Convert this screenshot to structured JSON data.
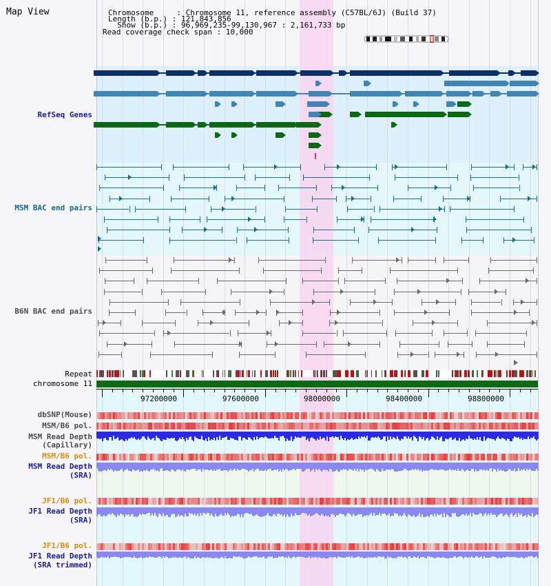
{
  "page": {
    "title": "Map View"
  },
  "info": {
    "chromosome_line": "Chromosome     : Chromosome 11, reference assembly (C57BL/6J) (Build 37)",
    "length_line": "Length (b.p.) : 121,843,856",
    "show_line": "  Show (b.p.) : 96,969,235-99,130,967 : 2,161,733 bp",
    "coverage_line": "Read coverage check span : 10,000"
  },
  "tracks": {
    "refseq_label": "RefSeq Genes",
    "msm_bac_label": "MSM BAC end pairs",
    "b6n_bac_label": "B6N BAC end pairs",
    "repeat_label": "Repeat",
    "chromosome_label": "chromosome 11",
    "dbsnp_label": "dbSNP(Mouse)",
    "msm_b6_pol_label_1": "MSM/B6 pol.",
    "msm_read_depth_cap_label_1": "MSM Read Depth",
    "msm_read_depth_cap_label_2": "(Capillary)",
    "msm_b6_pol_label_2": "MSM/B6 pol.",
    "msm_read_depth_sra_label_1": "MSM Read Depth",
    "msm_read_depth_sra_label_2": "(SRA)",
    "jf1_b6_pol_label_1": "JF1/B6 pol.",
    "jf1_read_depth_sra_label_1": "JF1 Read Depth",
    "jf1_read_depth_sra_label_2": "(SRA)",
    "jf1_b6_pol_label_2": "JF1/B6 pol.",
    "jf1_read_depth_trim_label_1": "JF1 Read Depth",
    "jf1_read_depth_trim_label_2": "(SRA trimmed)"
  },
  "ruler": {
    "ticks": [
      "97200000",
      "97600000",
      "98000000",
      "98400000",
      "98800000"
    ]
  },
  "colors": {
    "refseq_dark": "#0d2f66",
    "refseq_mid": "#3f86b4",
    "refseq_green": "#0a6a12",
    "refseq_bg": "#ddf0fb",
    "msm_bg": "#e4f8fb",
    "msm_line": "#1a6d8a",
    "b6n_bg": "#f5f5f8",
    "b6n_line": "#6a6a6a",
    "highlight": "#f8d6f0",
    "chromosome_bar": "#0a6a12",
    "snp_red": "#e83030",
    "depth_blue": "#2a2ae8",
    "depth_light": "#8888f0"
  }
}
